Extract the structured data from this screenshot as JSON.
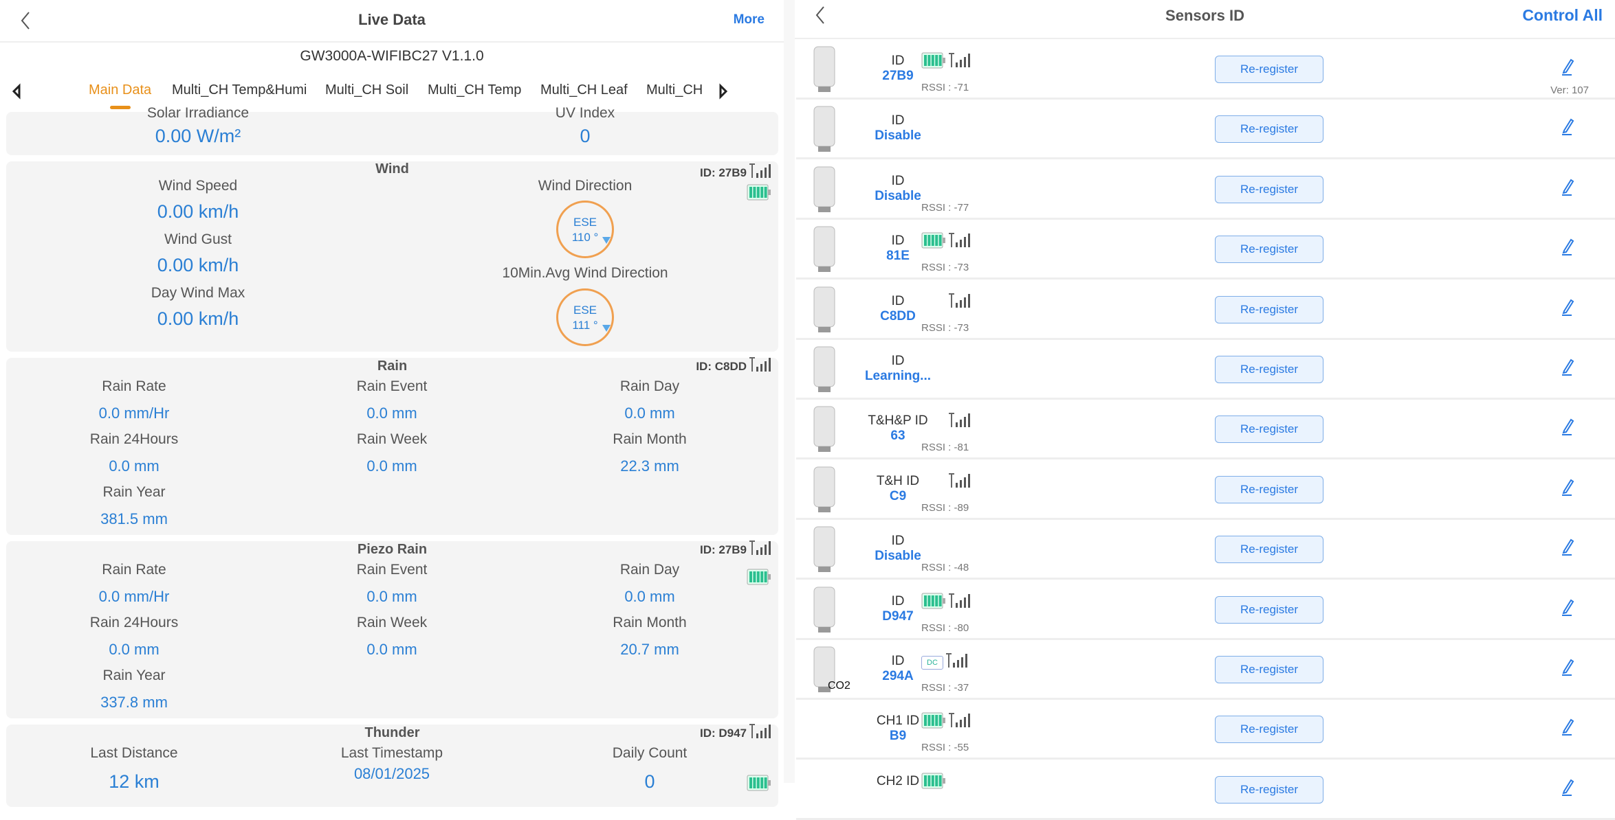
{
  "left": {
    "header": {
      "title": "Live Data",
      "more": "More"
    },
    "device": "GW3000A-WIFIBC27 V1.1.0",
    "tabs": [
      "Main Data",
      "Multi_CH Temp&Humi",
      "Multi_CH Soil",
      "Multi_CH Temp",
      "Multi_CH Leaf",
      "Multi_CH"
    ],
    "solar": {
      "label1": "Solar Irradiance",
      "value1": "0.00 W/m²",
      "label2": "UV Index",
      "value2": "0"
    },
    "wind": {
      "title": "Wind",
      "id": "ID: 27B9",
      "speed_label": "Wind Speed",
      "speed": "0.00 km/h",
      "gust_label": "Wind Gust",
      "gust": "0.00 km/h",
      "max_label": "Day Wind Max",
      "max": "0.00 km/h",
      "dir_label": "Wind Direction",
      "dir_cardinal": "ESE",
      "dir_deg": "110 °",
      "avg_label": "10Min.Avg Wind Direction",
      "avg_cardinal": "ESE",
      "avg_deg": "111 °"
    },
    "rain": {
      "title": "Rain",
      "id": "ID: C8DD",
      "cells": [
        [
          "Rain Rate",
          "0.0 mm/Hr"
        ],
        [
          "Rain Event",
          "0.0 mm"
        ],
        [
          "Rain Day",
          "0.0 mm"
        ],
        [
          "Rain 24Hours",
          "0.0 mm"
        ],
        [
          "Rain Week",
          "0.0 mm"
        ],
        [
          "Rain Month",
          "22.3 mm"
        ],
        [
          "Rain Year",
          "381.5 mm"
        ]
      ]
    },
    "piezo": {
      "title": "Piezo Rain",
      "id": "ID: 27B9",
      "cells": [
        [
          "Rain Rate",
          "0.0 mm/Hr"
        ],
        [
          "Rain Event",
          "0.0 mm"
        ],
        [
          "Rain Day",
          "0.0 mm"
        ],
        [
          "Rain 24Hours",
          "0.0 mm"
        ],
        [
          "Rain Week",
          "0.0 mm"
        ],
        [
          "Rain Month",
          "20.7 mm"
        ],
        [
          "Rain Year",
          "337.8 mm"
        ]
      ]
    },
    "thunder": {
      "title": "Thunder",
      "id": "ID: D947",
      "cells": [
        [
          "Last Distance",
          "12 km"
        ],
        [
          "Last Timestamp",
          "08/01/2025"
        ],
        [
          "Daily Count",
          "0"
        ]
      ]
    }
  },
  "right": {
    "header": {
      "title": "Sensors ID",
      "control_all": "Control All"
    },
    "button_label": "Re-register",
    "colors": {
      "accent": "#2a7ae2",
      "battery": "#2bbf8f",
      "orange": "#e8901a"
    },
    "sensors": [
      {
        "label": "ID",
        "id": "27B9",
        "battery": "full",
        "signal": true,
        "rssi": "RSSI : -71",
        "ver": "Ver: 107"
      },
      {
        "label": "ID",
        "id": "Disable"
      },
      {
        "label": "ID",
        "id": "Disable",
        "rssi": "RSSI : -77"
      },
      {
        "label": "ID",
        "id": "81E",
        "battery": "full",
        "signal": true,
        "rssi": "RSSI : -73"
      },
      {
        "label": "ID",
        "id": "C8DD",
        "signal": true,
        "rssi": "RSSI : -73"
      },
      {
        "label": "ID",
        "id": "Learning..."
      },
      {
        "label": "T&H&P ID",
        "id": "63",
        "signal": true,
        "rssi": "RSSI : -81"
      },
      {
        "label": "T&H ID",
        "id": "C9",
        "signal": true,
        "rssi": "RSSI : -89"
      },
      {
        "label": "ID",
        "id": "Disable",
        "rssi": "RSSI : -48"
      },
      {
        "label": "ID",
        "id": "D947",
        "battery": "full",
        "signal": true,
        "rssi": "RSSI : -80"
      },
      {
        "label": "ID",
        "id": "294A",
        "battery": "DC",
        "signal": true,
        "rssi": "RSSI : -37",
        "tag": "CO2"
      },
      {
        "label": "CH1 ID",
        "id": "B9",
        "battery": "full",
        "signal": true,
        "rssi": "RSSI : -55",
        "noimg": true
      },
      {
        "label": "CH2 ID",
        "id": "",
        "battery": "full",
        "noimg": true
      }
    ]
  }
}
